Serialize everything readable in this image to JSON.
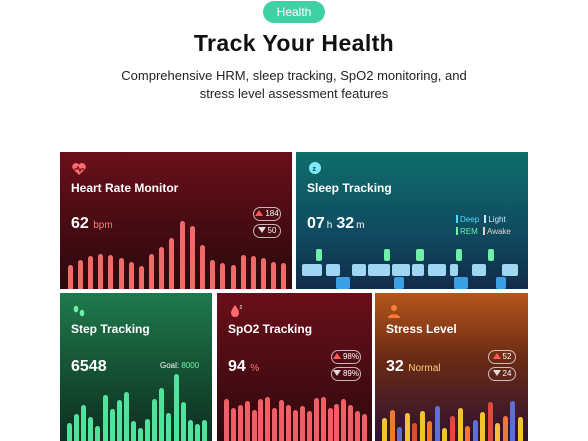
{
  "header": {
    "badge": "Health",
    "title": "Track Your Health",
    "subtitle_line1": "Comprehensive HRM, sleep tracking, SpO2 monitoring, and",
    "subtitle_line2": "stress level assessment features"
  },
  "cards": {
    "heart": {
      "title": "Heart Rate Monitor",
      "value": "62",
      "unit": "bpm",
      "max": "184",
      "min": "50",
      "icon": "heart-pulse-icon",
      "bar_color": "#f06a6a",
      "bars": [
        0.35,
        0.42,
        0.48,
        0.52,
        0.5,
        0.45,
        0.4,
        0.34,
        0.52,
        0.62,
        0.75,
        1.0,
        0.92,
        0.65,
        0.42,
        0.38,
        0.36,
        0.5,
        0.48,
        0.45,
        0.4,
        0.38
      ]
    },
    "sleep": {
      "title": "Sleep Tracking",
      "hours": "07",
      "hours_unit": "h",
      "minutes": "32",
      "minutes_unit": "m",
      "legend": [
        "Deep",
        "Light",
        "REM",
        "Awake"
      ],
      "icon": "moon-sleep-icon"
    },
    "steps": {
      "title": "Step Tracking",
      "value": "6548",
      "goal_label": "Goal:",
      "goal_value": "8000",
      "icon": "footprints-icon",
      "bar_color": "#4fe39b",
      "bars": [
        0.25,
        0.38,
        0.52,
        0.34,
        0.22,
        0.65,
        0.46,
        0.58,
        0.7,
        0.28,
        0.18,
        0.32,
        0.6,
        0.75,
        0.4,
        0.95,
        0.55,
        0.3,
        0.24,
        0.3
      ]
    },
    "spo2": {
      "title": "SpO2 Tracking",
      "value": "94",
      "unit": "%",
      "max": "98%",
      "min": "89%",
      "icon": "blood-oxygen-icon",
      "bar_color": "#f05f66",
      "bars": [
        0.7,
        0.55,
        0.6,
        0.66,
        0.52,
        0.7,
        0.74,
        0.55,
        0.68,
        0.6,
        0.52,
        0.58,
        0.5,
        0.72,
        0.74,
        0.55,
        0.62,
        0.7,
        0.6,
        0.5,
        0.45
      ]
    },
    "stress": {
      "title": "Stress Level",
      "value": "32",
      "label": "Normal",
      "max": "52",
      "min": "24",
      "icon": "person-stress-icon",
      "bars": [
        0.45,
        0.62,
        0.28,
        0.55,
        0.35,
        0.6,
        0.4,
        0.7,
        0.25,
        0.5,
        0.65,
        0.3,
        0.42,
        0.58,
        0.78,
        0.35,
        0.5,
        0.8,
        0.48
      ]
    }
  }
}
